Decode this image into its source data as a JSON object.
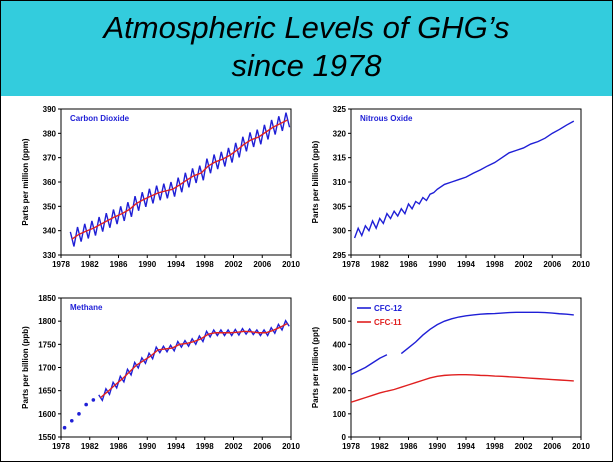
{
  "header": {
    "lines": [
      "Atmospheric Levels of GHG’s",
      "since  1978"
    ]
  },
  "chart_data": [
    {
      "type": "line",
      "title": "Carbon Dioxide",
      "ylabel": "Parts per million (ppm)",
      "xlim": [
        1978,
        2010
      ],
      "xticks": [
        1978,
        1982,
        1986,
        1990,
        1994,
        1998,
        2002,
        2006,
        2010
      ],
      "ylim": [
        330,
        390
      ],
      "yticks": [
        330,
        340,
        350,
        360,
        370,
        380,
        390
      ],
      "series": [
        {
          "color": "#1f1fd6",
          "x": [
            1979.3,
            1979.8,
            1980.3,
            1980.8,
            1981.3,
            1981.8,
            1982.3,
            1982.8,
            1983.3,
            1983.8,
            1984.3,
            1984.8,
            1985.3,
            1985.8,
            1986.3,
            1986.8,
            1987.3,
            1987.8,
            1988.3,
            1988.8,
            1989.3,
            1989.8,
            1990.3,
            1990.8,
            1991.3,
            1991.8,
            1992.3,
            1992.8,
            1993.3,
            1993.8,
            1994.3,
            1994.8,
            1995.3,
            1995.8,
            1996.3,
            1996.8,
            1997.3,
            1997.8,
            1998.3,
            1998.8,
            1999.3,
            1999.8,
            2000.3,
            2000.8,
            2001.3,
            2001.8,
            2002.3,
            2002.8,
            2003.3,
            2003.8,
            2004.3,
            2004.8,
            2005.3,
            2005.8,
            2006.3,
            2006.8,
            2007.3,
            2007.8,
            2008.3,
            2008.8,
            2009.3,
            2009.8
          ],
          "values": [
            339.5,
            333.5,
            341.5,
            335.5,
            342.8,
            336.8,
            344,
            338,
            345.6,
            339.6,
            347.2,
            341.2,
            348.7,
            342.7,
            350,
            344,
            351.7,
            345.7,
            354.2,
            348.2,
            355.8,
            349.8,
            357.2,
            351.2,
            358.5,
            352.5,
            359.3,
            353.3,
            360,
            354,
            361.8,
            355.8,
            363.8,
            357.8,
            365.6,
            359.6,
            366.7,
            360.7,
            369.6,
            363.6,
            371.3,
            365.3,
            372.4,
            366.4,
            374,
            368,
            376.1,
            370.1,
            378.6,
            372.6,
            380.4,
            374.4,
            381.5,
            375.5,
            383.5,
            377.5,
            385.5,
            379.5,
            387,
            381,
            388.5,
            382.5
          ]
        },
        {
          "color": "#e02020",
          "x": [
            1979.5,
            1980.5,
            1981.5,
            1982.5,
            1983.5,
            1984.5,
            1985.5,
            1986.5,
            1987.5,
            1988.5,
            1989.5,
            1990.5,
            1991.5,
            1992.5,
            1993.5,
            1994.5,
            1995.5,
            1996.5,
            1997.5,
            1998.5,
            1999.5,
            2000.5,
            2001.5,
            2002.5,
            2003.5,
            2004.5,
            2005.5,
            2006.5,
            2007.5,
            2008.5,
            2009.5
          ],
          "values": [
            336.5,
            338.5,
            339.8,
            341,
            342.6,
            344.2,
            345.7,
            347,
            348.7,
            351.2,
            352.8,
            354.2,
            355.5,
            356.3,
            357,
            358.8,
            360.8,
            362.6,
            363.7,
            366.6,
            368.3,
            369.4,
            371,
            373.1,
            375.6,
            377.4,
            378.5,
            380.5,
            382.5,
            384,
            385.5
          ]
        }
      ]
    },
    {
      "type": "line",
      "title": "Nitrous Oxide",
      "ylabel": "Parts per billion (ppb)",
      "xlim": [
        1978,
        2010
      ],
      "xticks": [
        1978,
        1982,
        1986,
        1990,
        1994,
        1998,
        2002,
        2006,
        2010
      ],
      "ylim": [
        295,
        325
      ],
      "yticks": [
        295,
        300,
        305,
        310,
        315,
        320,
        325
      ],
      "series": [
        {
          "color": "#1f1fd6",
          "x": [
            1978.5,
            1979,
            1979.5,
            1980,
            1980.5,
            1981,
            1981.5,
            1982,
            1982.5,
            1983,
            1983.5,
            1984,
            1984.5,
            1985,
            1985.5,
            1986,
            1986.5,
            1987,
            1987.5,
            1988,
            1988.5,
            1989,
            1989.5,
            1990,
            1991,
            1992,
            1993,
            1994,
            1995,
            1996,
            1997,
            1998,
            1999,
            2000,
            2001,
            2002,
            2003,
            2004,
            2005,
            2006,
            2007,
            2008,
            2009
          ],
          "values": [
            298.5,
            300.5,
            299,
            301,
            300,
            302,
            300.5,
            302.5,
            301.5,
            303.5,
            302.5,
            304,
            303,
            304.5,
            303.5,
            305.5,
            304.5,
            306,
            305.5,
            306.8,
            306.2,
            307.5,
            307.8,
            308.5,
            309.5,
            310,
            310.5,
            311,
            311.8,
            312.5,
            313.3,
            314,
            315,
            316,
            316.5,
            317,
            317.8,
            318.3,
            319,
            320,
            320.8,
            321.7,
            322.5
          ]
        }
      ]
    },
    {
      "type": "line",
      "title": "Methane",
      "ylabel": "Parts per billion (ppb)",
      "xlim": [
        1978,
        2010
      ],
      "xticks": [
        1978,
        1982,
        1986,
        1990,
        1994,
        1998,
        2002,
        2006,
        2010
      ],
      "ylim": [
        1550,
        1850
      ],
      "yticks": [
        1550,
        1600,
        1650,
        1700,
        1750,
        1800,
        1850
      ],
      "series": [
        {
          "color": "#1f1fd6",
          "mode": "markers",
          "x": [
            1978.5,
            1979.5,
            1980.5,
            1981.5,
            1982.5
          ],
          "values": [
            1570,
            1585,
            1600,
            1620,
            1630
          ]
        },
        {
          "color": "#1f1fd6",
          "x": [
            1983.25,
            1983.75,
            1984.25,
            1984.75,
            1985.25,
            1985.75,
            1986.25,
            1986.75,
            1987.25,
            1987.75,
            1988.25,
            1988.75,
            1989.25,
            1989.75,
            1990.25,
            1990.75,
            1991.25,
            1991.75,
            1992.25,
            1992.75,
            1993.25,
            1993.75,
            1994.25,
            1994.75,
            1995.25,
            1995.75,
            1996.25,
            1996.75,
            1997.25,
            1997.75,
            1998.25,
            1998.75,
            1999.25,
            1999.75,
            2000.25,
            2000.75,
            2001.25,
            2001.75,
            2002.25,
            2002.75,
            2003.25,
            2003.75,
            2004.25,
            2004.75,
            2005.25,
            2005.75,
            2006.25,
            2006.75,
            2007.25,
            2007.75,
            2008.25,
            2008.75,
            2009.25,
            2009.75
          ],
          "values": [
            1641,
            1629,
            1654,
            1642,
            1668,
            1656,
            1681,
            1669,
            1696,
            1684,
            1711,
            1699,
            1721,
            1709,
            1731,
            1719,
            1744,
            1732,
            1746,
            1734,
            1748,
            1736,
            1756,
            1744,
            1758,
            1746,
            1762,
            1750,
            1768,
            1756,
            1778,
            1766,
            1781,
            1769,
            1781,
            1769,
            1781,
            1769,
            1782,
            1770,
            1784,
            1772,
            1783,
            1771,
            1781,
            1769,
            1781,
            1769,
            1786,
            1774,
            1793,
            1781,
            1801,
            1789
          ]
        },
        {
          "color": "#e02020",
          "x": [
            1983.5,
            1984.5,
            1985.5,
            1986.5,
            1987.5,
            1988.5,
            1989.5,
            1990.5,
            1991.5,
            1992.5,
            1993.5,
            1994.5,
            1995.5,
            1996.5,
            1997.5,
            1998.5,
            1999.5,
            2000.5,
            2001.5,
            2002.5,
            2003.5,
            2004.5,
            2005.5,
            2006.5,
            2007.5,
            2008.5,
            2009.5
          ],
          "values": [
            1635,
            1648,
            1662,
            1675,
            1690,
            1705,
            1715,
            1725,
            1738,
            1740,
            1742,
            1750,
            1752,
            1756,
            1762,
            1772,
            1775,
            1775,
            1775,
            1776,
            1778,
            1777,
            1775,
            1775,
            1780,
            1787,
            1795
          ]
        }
      ]
    },
    {
      "type": "line",
      "ylabel": "Parts per trillion (ppt)",
      "legend": "upper left",
      "xlim": [
        1978,
        2010
      ],
      "xticks": [
        1978,
        1982,
        1986,
        1990,
        1994,
        1998,
        2002,
        2006,
        2010
      ],
      "ylim": [
        0,
        600
      ],
      "yticks": [
        0,
        100,
        200,
        300,
        400,
        500,
        600
      ],
      "series": [
        {
          "name": "CFC-12",
          "color": "#1f1fd6",
          "x": [
            1978,
            1979,
            1980,
            1981,
            1982,
            1983,
            1984,
            1985,
            1986,
            1987,
            1988,
            1989,
            1990,
            1991,
            1992,
            1993,
            1994,
            1995,
            1996,
            1997,
            1998,
            1999,
            2000,
            2001,
            2002,
            2003,
            2004,
            2005,
            2006,
            2007,
            2008,
            2009
          ],
          "values": [
            270,
            285,
            300,
            320,
            340,
            355,
            null,
            360,
            385,
            410,
            440,
            465,
            485,
            500,
            510,
            518,
            523,
            527,
            530,
            532,
            533,
            535,
            537,
            538,
            538,
            538,
            538,
            537,
            535,
            532,
            530,
            527
          ]
        },
        {
          "name": "CFC-11",
          "color": "#e02020",
          "x": [
            1978,
            1979,
            1980,
            1981,
            1982,
            1983,
            1984,
            1985,
            1986,
            1987,
            1988,
            1989,
            1990,
            1991,
            1992,
            1993,
            1994,
            1995,
            1996,
            1997,
            1998,
            1999,
            2000,
            2001,
            2002,
            2003,
            2004,
            2005,
            2006,
            2007,
            2008,
            2009
          ],
          "values": [
            150,
            160,
            170,
            180,
            190,
            198,
            205,
            215,
            225,
            235,
            245,
            255,
            262,
            266,
            268,
            269,
            269,
            268,
            266,
            265,
            263,
            262,
            260,
            258,
            256,
            254,
            252,
            250,
            248,
            246,
            244,
            242
          ]
        }
      ]
    }
  ]
}
